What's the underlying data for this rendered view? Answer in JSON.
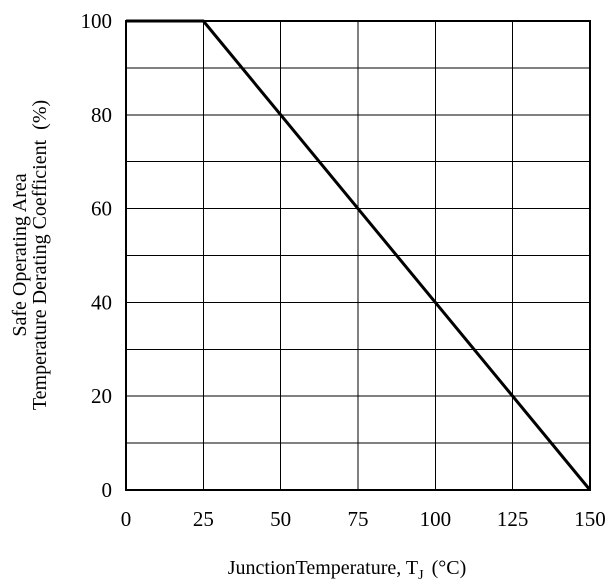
{
  "chart_data": {
    "type": "line",
    "xlabel": "JunctionTemperature, T",
    "xlabel_subscript": "J",
    "xlabel_unit": "(°C)",
    "ylabel_line1": "Safe Operating Area",
    "ylabel_line2": "Temperature Derating Coefficient",
    "ylabel_unit": "(%)",
    "xlim": [
      0,
      150
    ],
    "ylim": [
      0,
      100
    ],
    "x_ticks": [
      0,
      25,
      50,
      75,
      100,
      125,
      150
    ],
    "x_tick_labels": [
      "0",
      "25",
      "50",
      "75",
      "100",
      "125",
      "150"
    ],
    "y_ticks": [
      0,
      20,
      40,
      60,
      80,
      100
    ],
    "y_tick_labels": [
      "0",
      "20",
      "40",
      "60",
      "80",
      "100"
    ],
    "y_grid_step": 10,
    "x_grid_step": 25,
    "grid": true,
    "series": [
      {
        "x": [
          0,
          25,
          150
        ],
        "y": [
          100,
          100,
          0
        ],
        "color": "#000000"
      }
    ]
  }
}
